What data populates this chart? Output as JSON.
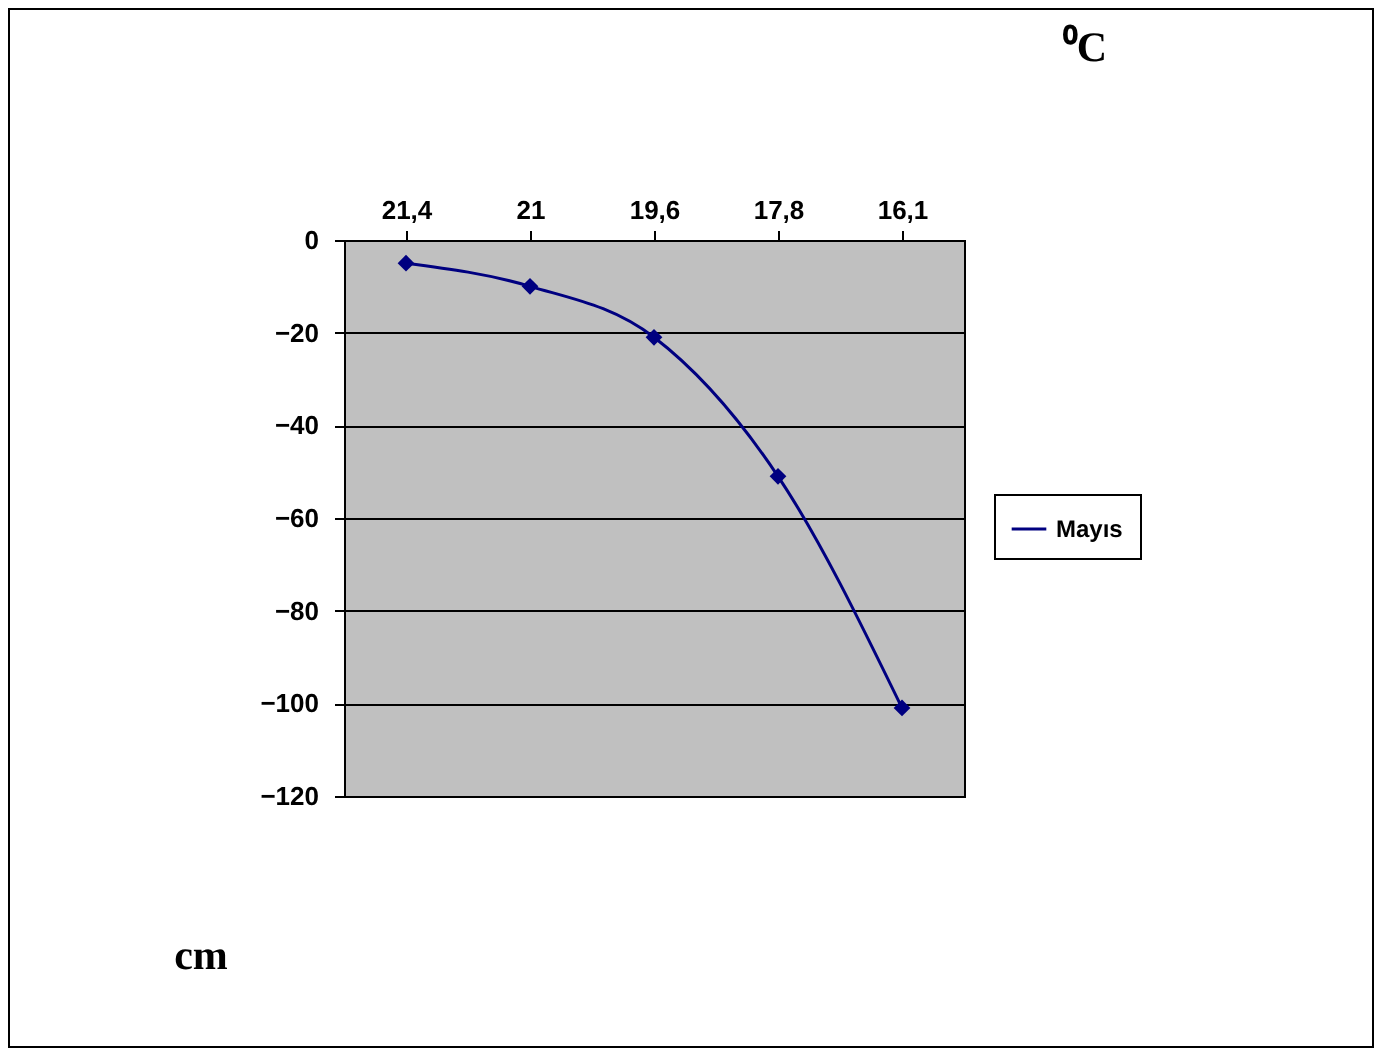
{
  "chart_data": {
    "type": "line",
    "xlabel": "cm",
    "ylabel": "⁰C",
    "categories": [
      "21,4",
      "21",
      "19,6",
      "17,8",
      "16,1"
    ],
    "series": [
      {
        "name": "Mayıs",
        "color": "#000080",
        "values": [
          -5,
          -10,
          -21,
          -51,
          -101
        ]
      }
    ],
    "ylim": [
      -120,
      0
    ],
    "yticks": [
      -120,
      -100,
      -80,
      -60,
      -40,
      -20,
      0
    ],
    "grid": "y",
    "legend": "right",
    "marker": "diamond",
    "line_style": "solid"
  }
}
